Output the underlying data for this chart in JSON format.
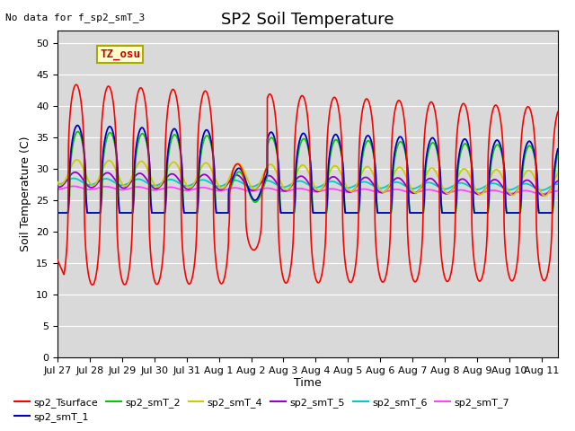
{
  "title": "SP2 Soil Temperature",
  "xlabel": "Time",
  "ylabel": "Soil Temperature (C)",
  "note": "No data for f_sp2_smT_3",
  "tz_label": "TZ_osu",
  "ylim": [
    0,
    52
  ],
  "yticks": [
    0,
    5,
    10,
    15,
    20,
    25,
    30,
    35,
    40,
    45,
    50
  ],
  "x_tick_labels": [
    "Jul 27",
    "Jul 28",
    "Jul 29",
    "Jul 30",
    "Jul 31",
    "Aug 1",
    "Aug 2",
    "Aug 3",
    "Aug 4",
    "Aug 5",
    "Aug 6",
    "Aug 7",
    "Aug 8",
    "Aug 9",
    "Aug 10",
    "Aug 11"
  ],
  "series_colors": {
    "sp2_Tsurface": "#ff0000",
    "sp2_smT_1": "#0000cc",
    "sp2_smT_2": "#00cc00",
    "sp2_smT_4": "#cccc00",
    "sp2_smT_5": "#9900cc",
    "sp2_smT_6": "#00cccc",
    "sp2_smT_7": "#ff44ff"
  },
  "bg_color": "#d9d9d9",
  "grid_color": "#ffffff",
  "n_days": 15.5,
  "points_per_day": 288
}
